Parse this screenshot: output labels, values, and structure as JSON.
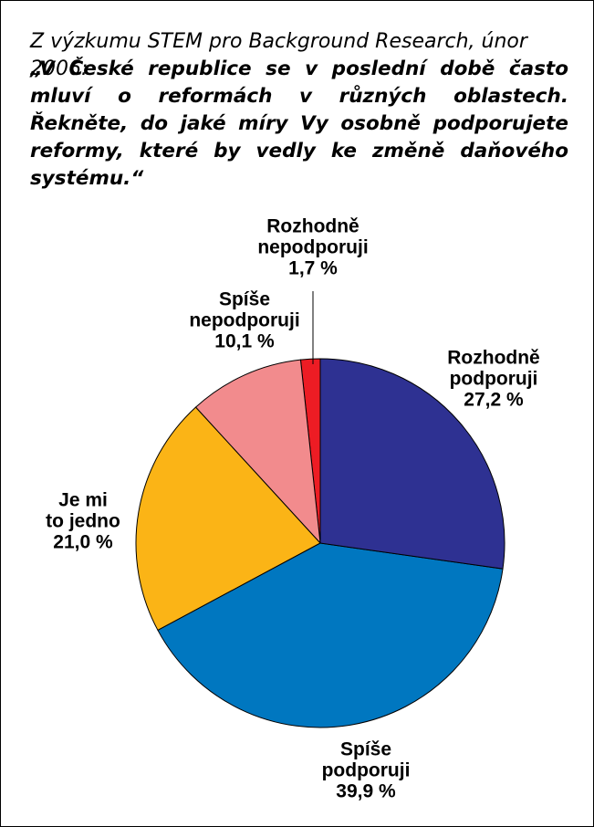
{
  "chart_data": {
    "type": "pie",
    "title": "Z výzkumu STEM pro Background Research, únor 2006:",
    "subtitle": "„V České republice se v poslední době často mluví o reformách v různých oblastech. Řekněte, do jaké míry Vy osobně podporujete reformy, které by vedly ke změně daňového systému.“",
    "categories": [
      "Rozhodně\npodporuji",
      "Spíše\npodporuji",
      "Je mi\nto jedno",
      "Spíše\nnepodporuji",
      "Rozhodně\nnepodporuji"
    ],
    "values": [
      27.2,
      39.9,
      21.0,
      10.1,
      1.7
    ],
    "value_labels": [
      "27,2 %",
      "39,9 %",
      "21,0 %",
      "10,1 %",
      "1,7 %"
    ],
    "colors": [
      "#2e3192",
      "#0077c0",
      "#fbb416",
      "#f28b8d",
      "#ed1c24"
    ]
  }
}
